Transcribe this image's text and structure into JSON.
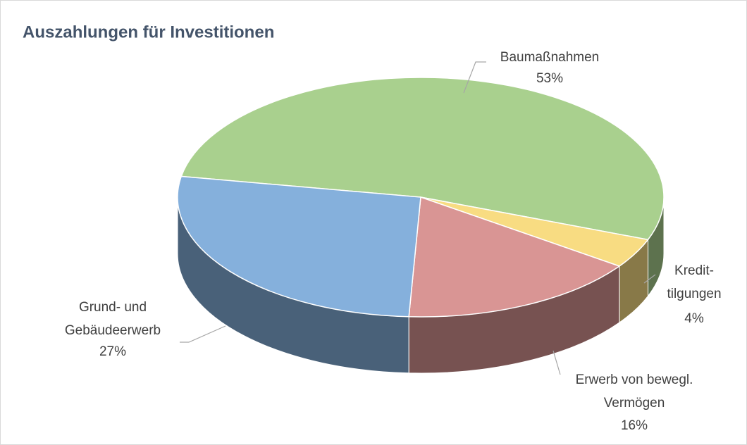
{
  "chart_data": {
    "type": "pie3d",
    "title": "Auszahlungen für Investitionen",
    "categories": [
      "Baumaßnahmen",
      "Kredit-\ntilgungen",
      "Erwerb von bewegl.\nVermögen",
      "Grund- und\nGebäudeerwerb"
    ],
    "values": [
      53,
      4,
      16,
      27
    ],
    "value_labels": [
      "53%",
      "4%",
      "16%",
      "27%"
    ],
    "colors": [
      "#a9d08e",
      "#f8dc82",
      "#d99594",
      "#85b0dc"
    ]
  }
}
